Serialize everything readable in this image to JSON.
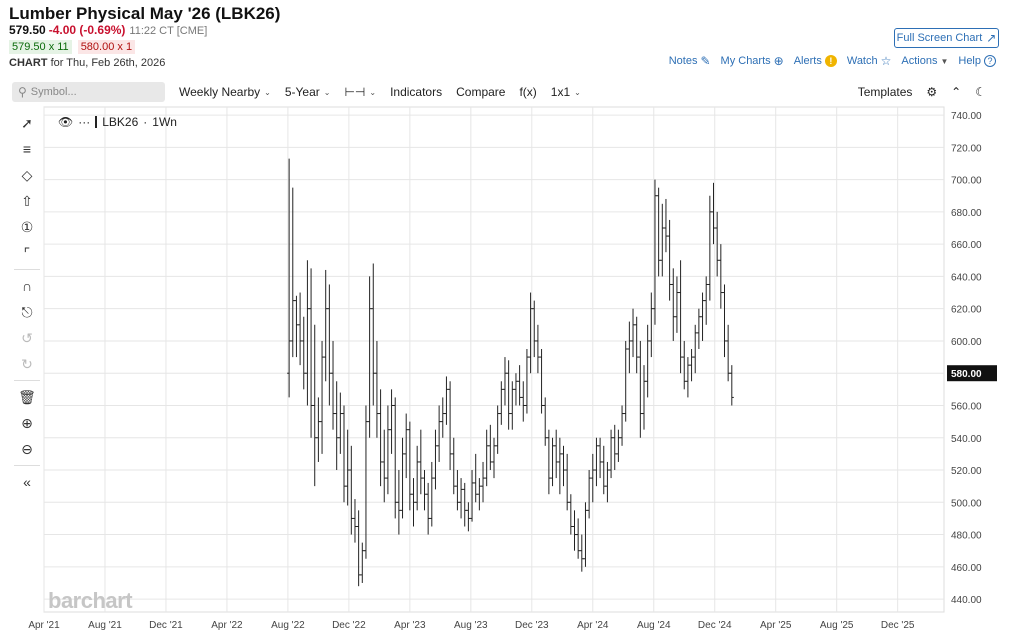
{
  "header": {
    "title": "Lumber Physical May '26 (LBK26)",
    "last": "579.50",
    "change": "-4.00 (-0.69%)",
    "time": "11:22 CT [CME]",
    "bid": "579.50 x 11",
    "ask": "580.00 x 1",
    "chart_label": "CHART",
    "chart_for": "for Thu, Feb 26th, 2026",
    "fullscreen": "Full Screen Chart"
  },
  "links": {
    "notes": "Notes",
    "mycharts": "My Charts",
    "alerts": "Alerts",
    "watch": "Watch",
    "actions": "Actions",
    "help": "Help"
  },
  "toolbar": {
    "search_placeholder": "Symbol...",
    "interval": "Weekly Nearby",
    "period": "5-Year",
    "indicators": "Indicators",
    "compare": "Compare",
    "fx": "f(x)",
    "layout": "1x1",
    "templates": "Templates"
  },
  "legend": {
    "symbol": "LBK26",
    "interval": "1Wn"
  },
  "watermark": "barchart",
  "icons": {
    "left_tools": [
      "line-tool-icon",
      "fib-tool-icon",
      "shapes-tool-icon",
      "arrow-tool-icon",
      "annotation-tool-icon",
      "pattern-tool-icon",
      "magnet-icon",
      "unlock-icon",
      "undo-icon",
      "redo-icon",
      "trash-icon",
      "zoom-in-icon",
      "zoom-out-icon",
      "collapse-icon"
    ]
  },
  "colors": {
    "link": "#2d6fb5",
    "down": "#c8102e",
    "price_tag_bg": "#111111",
    "bars": "#222222"
  },
  "chart_data": {
    "type": "ohlc",
    "x_ticks": [
      "Apr '21",
      "Aug '21",
      "Dec '21",
      "Apr '22",
      "Aug '22",
      "Dec '22",
      "Apr '23",
      "Aug '23",
      "Dec '23",
      "Apr '24",
      "Aug '24",
      "Dec '24",
      "Apr '25",
      "Aug '25",
      "Dec '25"
    ],
    "y_ticks": [
      "740.00",
      "720.00",
      "700.00",
      "680.00",
      "660.00",
      "640.00",
      "620.00",
      "600.00",
      "580.00",
      "560.00",
      "540.00",
      "520.00",
      "500.00",
      "480.00",
      "460.00",
      "440.00"
    ],
    "ylim": [
      432,
      745
    ],
    "current_price": 580.0,
    "current_price_label": "580.00",
    "x_start": "2021-04",
    "x_end": "2026-03",
    "bars": [
      [
        2022.59,
        580,
        713,
        565,
        600
      ],
      [
        2022.61,
        600,
        695,
        590,
        625
      ],
      [
        2022.63,
        625,
        628,
        590,
        610
      ],
      [
        2022.65,
        610,
        630,
        585,
        600
      ],
      [
        2022.67,
        600,
        615,
        570,
        580
      ],
      [
        2022.69,
        580,
        650,
        560,
        620
      ],
      [
        2022.71,
        620,
        645,
        540,
        560
      ],
      [
        2022.73,
        560,
        610,
        510,
        540
      ],
      [
        2022.75,
        540,
        565,
        525,
        550
      ],
      [
        2022.77,
        550,
        600,
        530,
        590
      ],
      [
        2022.79,
        590,
        644,
        575,
        620
      ],
      [
        2022.81,
        620,
        635,
        560,
        580
      ],
      [
        2022.83,
        580,
        600,
        545,
        555
      ],
      [
        2022.85,
        555,
        575,
        520,
        540
      ],
      [
        2022.87,
        540,
        568,
        530,
        555
      ],
      [
        2022.89,
        555,
        560,
        500,
        510
      ],
      [
        2022.91,
        510,
        545,
        498,
        520
      ],
      [
        2022.93,
        520,
        535,
        480,
        490
      ],
      [
        2022.95,
        490,
        502,
        475,
        485
      ],
      [
        2022.97,
        485,
        495,
        448,
        455
      ],
      [
        2022.99,
        455,
        475,
        450,
        470
      ],
      [
        2023.01,
        470,
        560,
        465,
        550
      ],
      [
        2023.03,
        550,
        640,
        540,
        620
      ],
      [
        2023.05,
        620,
        648,
        560,
        580
      ],
      [
        2023.07,
        580,
        600,
        540,
        555
      ],
      [
        2023.09,
        555,
        570,
        510,
        525
      ],
      [
        2023.11,
        525,
        545,
        500,
        515
      ],
      [
        2023.13,
        515,
        560,
        505,
        545
      ],
      [
        2023.15,
        545,
        570,
        530,
        560
      ],
      [
        2023.17,
        560,
        565,
        490,
        500
      ],
      [
        2023.19,
        500,
        520,
        480,
        495
      ],
      [
        2023.21,
        495,
        540,
        490,
        530
      ],
      [
        2023.23,
        530,
        555,
        515,
        545
      ],
      [
        2023.25,
        545,
        550,
        495,
        505
      ],
      [
        2023.27,
        505,
        515,
        485,
        500
      ],
      [
        2023.29,
        500,
        535,
        495,
        525
      ],
      [
        2023.31,
        525,
        545,
        505,
        515
      ],
      [
        2023.33,
        515,
        520,
        495,
        505
      ],
      [
        2023.35,
        505,
        512,
        480,
        490
      ],
      [
        2023.37,
        490,
        525,
        485,
        515
      ],
      [
        2023.39,
        515,
        545,
        508,
        535
      ],
      [
        2023.41,
        535,
        560,
        525,
        550
      ],
      [
        2023.43,
        550,
        565,
        540,
        555
      ],
      [
        2023.45,
        555,
        578,
        548,
        570
      ],
      [
        2023.47,
        570,
        575,
        520,
        530
      ],
      [
        2023.49,
        530,
        540,
        505,
        510
      ],
      [
        2023.51,
        510,
        520,
        495,
        500
      ],
      [
        2023.53,
        500,
        515,
        490,
        508
      ],
      [
        2023.55,
        508,
        512,
        485,
        495
      ],
      [
        2023.57,
        495,
        500,
        482,
        490
      ],
      [
        2023.59,
        490,
        520,
        488,
        512
      ],
      [
        2023.61,
        512,
        530,
        500,
        505
      ],
      [
        2023.63,
        505,
        515,
        495,
        510
      ],
      [
        2023.65,
        510,
        525,
        500,
        515
      ],
      [
        2023.67,
        515,
        545,
        510,
        535
      ],
      [
        2023.69,
        535,
        548,
        520,
        525
      ],
      [
        2023.71,
        525,
        540,
        515,
        535
      ],
      [
        2023.73,
        535,
        560,
        530,
        555
      ],
      [
        2023.75,
        555,
        575,
        548,
        570
      ],
      [
        2023.77,
        570,
        590,
        560,
        580
      ],
      [
        2023.79,
        580,
        588,
        545,
        555
      ],
      [
        2023.81,
        555,
        575,
        545,
        570
      ],
      [
        2023.83,
        570,
        580,
        560,
        575
      ],
      [
        2023.85,
        575,
        585,
        560,
        565
      ],
      [
        2023.87,
        565,
        575,
        550,
        560
      ],
      [
        2023.89,
        560,
        595,
        555,
        590
      ],
      [
        2023.91,
        590,
        630,
        580,
        620
      ],
      [
        2023.93,
        620,
        625,
        590,
        600
      ],
      [
        2023.95,
        600,
        610,
        580,
        590
      ],
      [
        2023.97,
        590,
        595,
        555,
        560
      ],
      [
        2023.99,
        560,
        565,
        535,
        540
      ],
      [
        2024.01,
        540,
        545,
        505,
        515
      ],
      [
        2024.03,
        515,
        540,
        510,
        535
      ],
      [
        2024.05,
        535,
        545,
        515,
        525
      ],
      [
        2024.07,
        525,
        540,
        505,
        530
      ],
      [
        2024.09,
        530,
        535,
        510,
        520
      ],
      [
        2024.11,
        520,
        530,
        495,
        500
      ],
      [
        2024.13,
        500,
        505,
        480,
        485
      ],
      [
        2024.15,
        485,
        495,
        470,
        480
      ],
      [
        2024.17,
        480,
        490,
        465,
        470
      ],
      [
        2024.19,
        470,
        480,
        457,
        465
      ],
      [
        2024.21,
        465,
        500,
        460,
        495
      ],
      [
        2024.23,
        495,
        520,
        490,
        515
      ],
      [
        2024.25,
        515,
        530,
        500,
        520
      ],
      [
        2024.27,
        520,
        540,
        510,
        535
      ],
      [
        2024.29,
        535,
        540,
        515,
        525
      ],
      [
        2024.31,
        525,
        535,
        505,
        510
      ],
      [
        2024.33,
        510,
        525,
        500,
        520
      ],
      [
        2024.35,
        520,
        545,
        515,
        540
      ],
      [
        2024.37,
        540,
        548,
        520,
        530
      ],
      [
        2024.39,
        530,
        545,
        525,
        540
      ],
      [
        2024.41,
        540,
        560,
        535,
        555
      ],
      [
        2024.43,
        555,
        600,
        550,
        595
      ],
      [
        2024.45,
        595,
        612,
        580,
        600
      ],
      [
        2024.47,
        600,
        620,
        590,
        610
      ],
      [
        2024.49,
        610,
        615,
        580,
        590
      ],
      [
        2024.51,
        590,
        600,
        540,
        555
      ],
      [
        2024.53,
        555,
        585,
        545,
        575
      ],
      [
        2024.55,
        575,
        610,
        565,
        600
      ],
      [
        2024.57,
        600,
        630,
        590,
        620
      ],
      [
        2024.59,
        620,
        700,
        610,
        690
      ],
      [
        2024.61,
        690,
        695,
        640,
        650
      ],
      [
        2024.63,
        650,
        685,
        640,
        670
      ],
      [
        2024.65,
        670,
        688,
        655,
        665
      ],
      [
        2024.67,
        665,
        675,
        625,
        635
      ],
      [
        2024.69,
        635,
        645,
        600,
        615
      ],
      [
        2024.71,
        615,
        640,
        605,
        630
      ],
      [
        2024.73,
        630,
        650,
        580,
        590
      ],
      [
        2024.75,
        590,
        600,
        570,
        575
      ],
      [
        2024.77,
        575,
        590,
        565,
        585
      ],
      [
        2024.79,
        585,
        595,
        575,
        590
      ],
      [
        2024.81,
        590,
        610,
        580,
        605
      ],
      [
        2024.83,
        605,
        620,
        595,
        615
      ],
      [
        2024.85,
        615,
        630,
        600,
        625
      ],
      [
        2024.87,
        625,
        640,
        610,
        635
      ],
      [
        2024.89,
        635,
        690,
        625,
        680
      ],
      [
        2024.91,
        680,
        698,
        660,
        670
      ],
      [
        2024.93,
        670,
        680,
        640,
        650
      ],
      [
        2024.95,
        650,
        660,
        620,
        630
      ],
      [
        2024.97,
        630,
        635,
        590,
        600
      ],
      [
        2024.99,
        600,
        610,
        575,
        580
      ],
      [
        2025.01,
        580,
        585,
        560,
        565
      ]
    ]
  }
}
